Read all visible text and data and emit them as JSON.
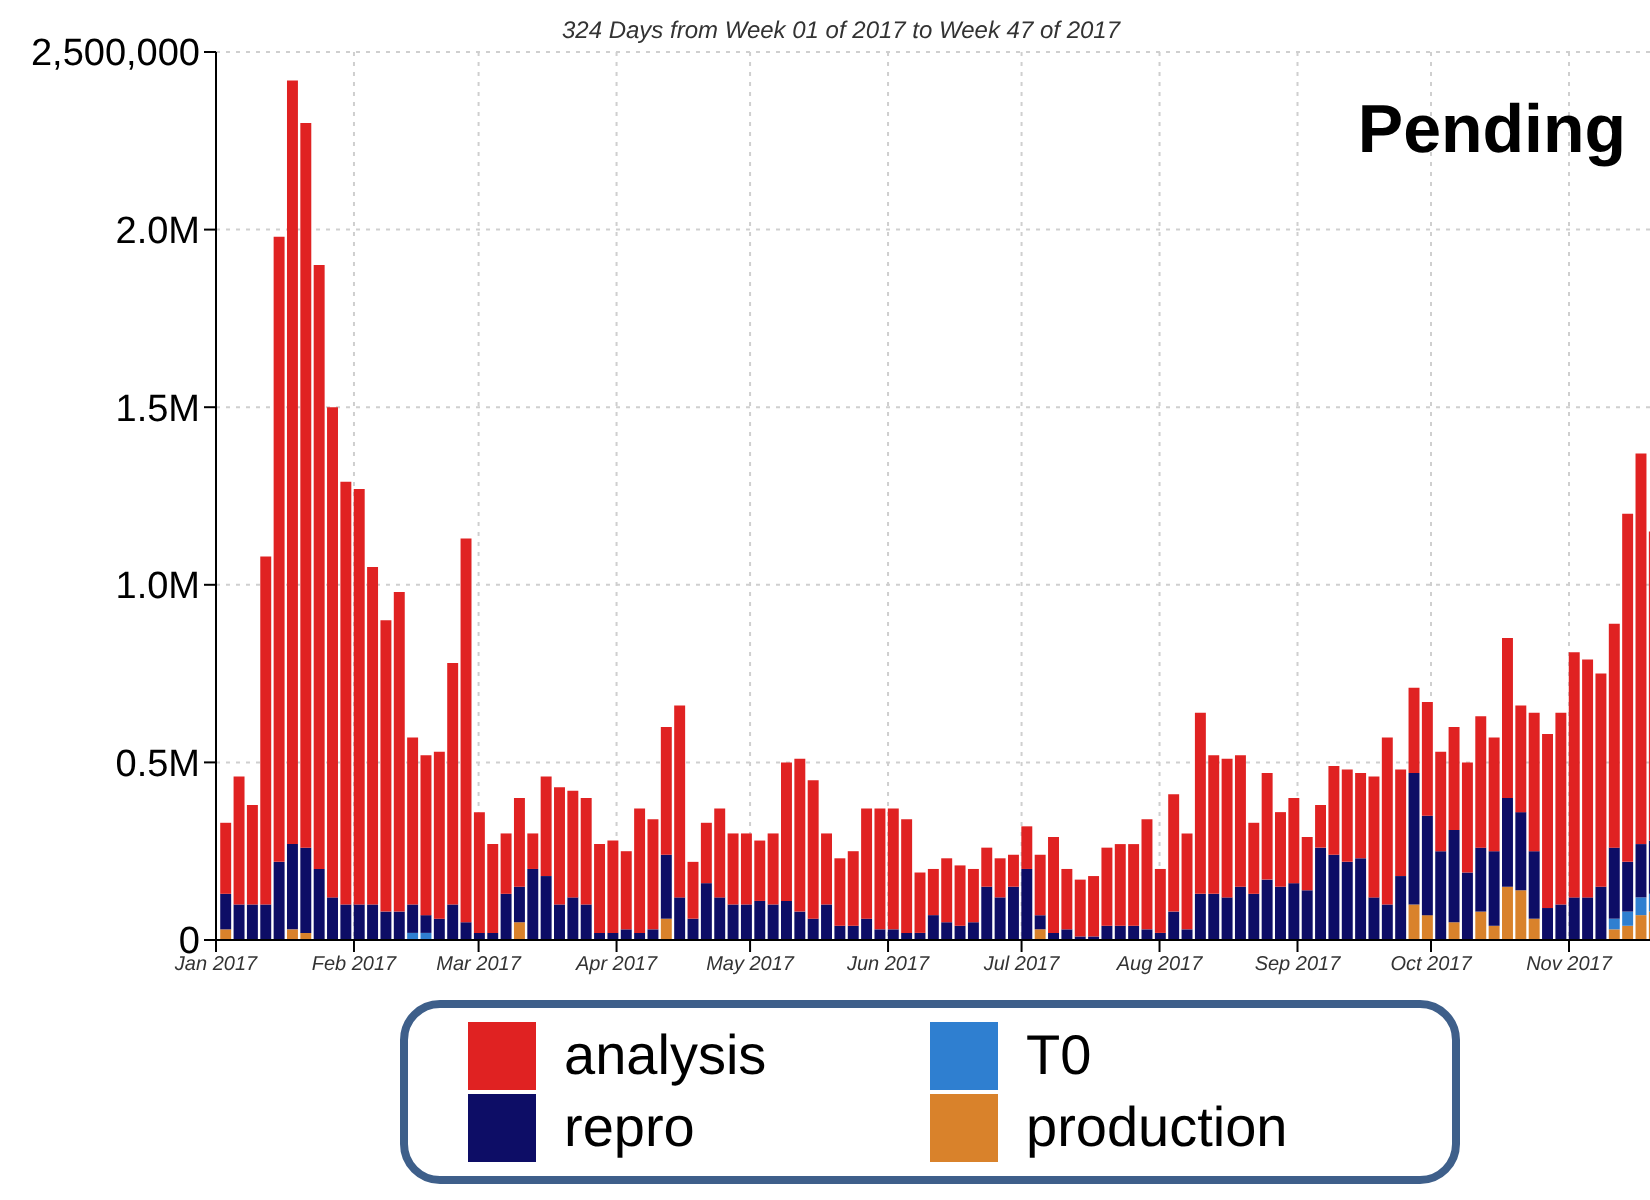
{
  "chart_data": {
    "type": "bar",
    "title": "324 Days from Week 01 of 2017 to Week 47 of 2017",
    "stacked": true,
    "grid": true,
    "legend": "bottom",
    "annotations": [
      "Pending"
    ],
    "xlim": [
      "2017-01-01",
      "2017-11-21"
    ],
    "xticks": [
      {
        "value": "2017-01-01",
        "label": "Jan 2017"
      },
      {
        "value": "2017-02-01",
        "label": "Feb 2017"
      },
      {
        "value": "2017-03-01",
        "label": "Mar 2017"
      },
      {
        "value": "2017-04-01",
        "label": "Apr 2017"
      },
      {
        "value": "2017-05-01",
        "label": "May 2017"
      },
      {
        "value": "2017-06-01",
        "label": "Jun 2017"
      },
      {
        "value": "2017-07-01",
        "label": "Jul 2017"
      },
      {
        "value": "2017-08-01",
        "label": "Aug 2017"
      },
      {
        "value": "2017-09-01",
        "label": "Sep 2017"
      },
      {
        "value": "2017-10-01",
        "label": "Oct 2017"
      },
      {
        "value": "2017-11-01",
        "label": "Nov 2017"
      }
    ],
    "ylim": [
      0,
      2500000
    ],
    "yticks": [
      0,
      {
        "value": 500000,
        "label": "0.5M"
      },
      {
        "value": 1000000,
        "label": "1.0M"
      },
      {
        "value": 1500000,
        "label": "1.5M"
      },
      {
        "value": 2000000,
        "label": "2.0M"
      },
      {
        "value": 2500000,
        "label": "2,500,000"
      }
    ],
    "x": [
      "2017-01-03",
      "2017-01-06",
      "2017-01-09",
      "2017-01-12",
      "2017-01-15",
      "2017-01-18",
      "2017-01-21",
      "2017-01-24",
      "2017-01-27",
      "2017-01-30",
      "2017-02-02",
      "2017-02-05",
      "2017-02-08",
      "2017-02-11",
      "2017-02-14",
      "2017-02-17",
      "2017-02-20",
      "2017-02-23",
      "2017-02-26",
      "2017-03-01",
      "2017-03-04",
      "2017-03-07",
      "2017-03-10",
      "2017-03-13",
      "2017-03-16",
      "2017-03-19",
      "2017-03-22",
      "2017-03-25",
      "2017-03-28",
      "2017-03-31",
      "2017-04-03",
      "2017-04-06",
      "2017-04-09",
      "2017-04-12",
      "2017-04-15",
      "2017-04-18",
      "2017-04-21",
      "2017-04-24",
      "2017-04-27",
      "2017-04-30",
      "2017-05-03",
      "2017-05-06",
      "2017-05-09",
      "2017-05-12",
      "2017-05-15",
      "2017-05-18",
      "2017-05-21",
      "2017-05-24",
      "2017-05-27",
      "2017-05-30",
      "2017-06-02",
      "2017-06-05",
      "2017-06-08",
      "2017-06-11",
      "2017-06-14",
      "2017-06-17",
      "2017-06-20",
      "2017-06-23",
      "2017-06-26",
      "2017-06-29",
      "2017-07-02",
      "2017-07-05",
      "2017-07-08",
      "2017-07-11",
      "2017-07-14",
      "2017-07-17",
      "2017-07-20",
      "2017-07-23",
      "2017-07-26",
      "2017-07-29",
      "2017-08-01",
      "2017-08-04",
      "2017-08-07",
      "2017-08-10",
      "2017-08-13",
      "2017-08-16",
      "2017-08-19",
      "2017-08-22",
      "2017-08-25",
      "2017-08-28",
      "2017-08-31",
      "2017-09-03",
      "2017-09-06",
      "2017-09-09",
      "2017-09-12",
      "2017-09-15",
      "2017-09-18",
      "2017-09-21",
      "2017-09-24",
      "2017-09-27",
      "2017-09-30",
      "2017-10-03",
      "2017-10-06",
      "2017-10-09",
      "2017-10-12",
      "2017-10-15",
      "2017-10-18",
      "2017-10-21",
      "2017-10-24",
      "2017-10-27",
      "2017-10-30",
      "2017-11-02",
      "2017-11-05",
      "2017-11-08",
      "2017-11-11",
      "2017-11-14",
      "2017-11-17",
      "2017-11-20"
    ],
    "series": [
      {
        "name": "production",
        "color": "#d9822b",
        "values": [
          30000,
          0,
          0,
          0,
          0,
          30000,
          20000,
          0,
          0,
          0,
          0,
          0,
          0,
          0,
          0,
          0,
          0,
          0,
          0,
          0,
          0,
          0,
          50000,
          0,
          0,
          0,
          0,
          0,
          0,
          0,
          0,
          0,
          0,
          60000,
          0,
          0,
          0,
          0,
          0,
          0,
          0,
          0,
          0,
          0,
          0,
          0,
          0,
          0,
          0,
          0,
          0,
          0,
          0,
          0,
          0,
          0,
          0,
          0,
          0,
          0,
          0,
          30000,
          0,
          0,
          0,
          0,
          0,
          0,
          0,
          0,
          0,
          0,
          0,
          0,
          0,
          0,
          0,
          0,
          0,
          0,
          0,
          0,
          0,
          0,
          0,
          0,
          0,
          0,
          0,
          100000,
          70000,
          0,
          50000,
          0,
          80000,
          40000,
          150000,
          140000,
          60000,
          0,
          0,
          0,
          0,
          0,
          30000,
          40000,
          70000,
          80000
        ]
      },
      {
        "name": "T0",
        "color": "#2f7fd0",
        "values": [
          0,
          0,
          0,
          0,
          0,
          0,
          0,
          0,
          0,
          0,
          0,
          0,
          0,
          0,
          20000,
          20000,
          0,
          0,
          0,
          0,
          0,
          0,
          0,
          0,
          0,
          0,
          0,
          0,
          0,
          0,
          0,
          0,
          0,
          0,
          0,
          0,
          0,
          0,
          0,
          0,
          0,
          0,
          0,
          0,
          0,
          0,
          0,
          0,
          0,
          0,
          0,
          0,
          0,
          0,
          0,
          0,
          0,
          0,
          0,
          0,
          0,
          0,
          0,
          0,
          0,
          0,
          0,
          0,
          0,
          0,
          0,
          0,
          0,
          0,
          0,
          0,
          0,
          0,
          0,
          0,
          0,
          0,
          0,
          0,
          0,
          0,
          0,
          0,
          0,
          0,
          0,
          0,
          0,
          0,
          0,
          0,
          0,
          0,
          0,
          0,
          0,
          0,
          0,
          0,
          30000,
          40000,
          50000,
          50000
        ]
      },
      {
        "name": "repro",
        "color": "#0d0d66",
        "values": [
          100000,
          100000,
          100000,
          100000,
          220000,
          240000,
          240000,
          200000,
          120000,
          100000,
          100000,
          100000,
          80000,
          80000,
          80000,
          50000,
          60000,
          100000,
          50000,
          20000,
          20000,
          130000,
          100000,
          200000,
          180000,
          100000,
          120000,
          100000,
          20000,
          20000,
          30000,
          20000,
          30000,
          180000,
          120000,
          60000,
          160000,
          120000,
          100000,
          100000,
          110000,
          100000,
          110000,
          80000,
          60000,
          100000,
          40000,
          40000,
          60000,
          30000,
          30000,
          20000,
          20000,
          70000,
          50000,
          40000,
          50000,
          150000,
          120000,
          150000,
          200000,
          40000,
          20000,
          30000,
          10000,
          10000,
          40000,
          40000,
          40000,
          30000,
          20000,
          80000,
          30000,
          130000,
          130000,
          120000,
          150000,
          130000,
          170000,
          150000,
          160000,
          140000,
          260000,
          240000,
          220000,
          230000,
          120000,
          100000,
          180000,
          370000,
          280000,
          250000,
          260000,
          190000,
          180000,
          210000,
          250000,
          220000,
          190000,
          90000,
          100000,
          120000,
          120000,
          150000,
          200000,
          140000,
          150000,
          150000
        ]
      },
      {
        "name": "analysis",
        "color": "#e02222",
        "values": [
          200000,
          360000,
          280000,
          980000,
          1760000,
          2150000,
          2040000,
          1700000,
          1380000,
          1190000,
          1170000,
          950000,
          820000,
          900000,
          470000,
          450000,
          470000,
          680000,
          1080000,
          340000,
          250000,
          170000,
          250000,
          100000,
          280000,
          330000,
          300000,
          300000,
          250000,
          260000,
          220000,
          350000,
          310000,
          360000,
          540000,
          160000,
          170000,
          250000,
          200000,
          200000,
          170000,
          200000,
          390000,
          430000,
          390000,
          200000,
          190000,
          210000,
          310000,
          340000,
          340000,
          320000,
          170000,
          130000,
          180000,
          170000,
          150000,
          110000,
          110000,
          90000,
          120000,
          170000,
          270000,
          170000,
          160000,
          170000,
          220000,
          230000,
          230000,
          310000,
          180000,
          330000,
          270000,
          510000,
          390000,
          390000,
          370000,
          200000,
          300000,
          210000,
          240000,
          150000,
          120000,
          250000,
          260000,
          240000,
          340000,
          470000,
          300000,
          240000,
          320000,
          280000,
          290000,
          310000,
          370000,
          320000,
          450000,
          300000,
          390000,
          490000,
          540000,
          690000,
          670000,
          600000,
          630000,
          980000,
          1100000,
          870000
        ]
      }
    ]
  }
}
